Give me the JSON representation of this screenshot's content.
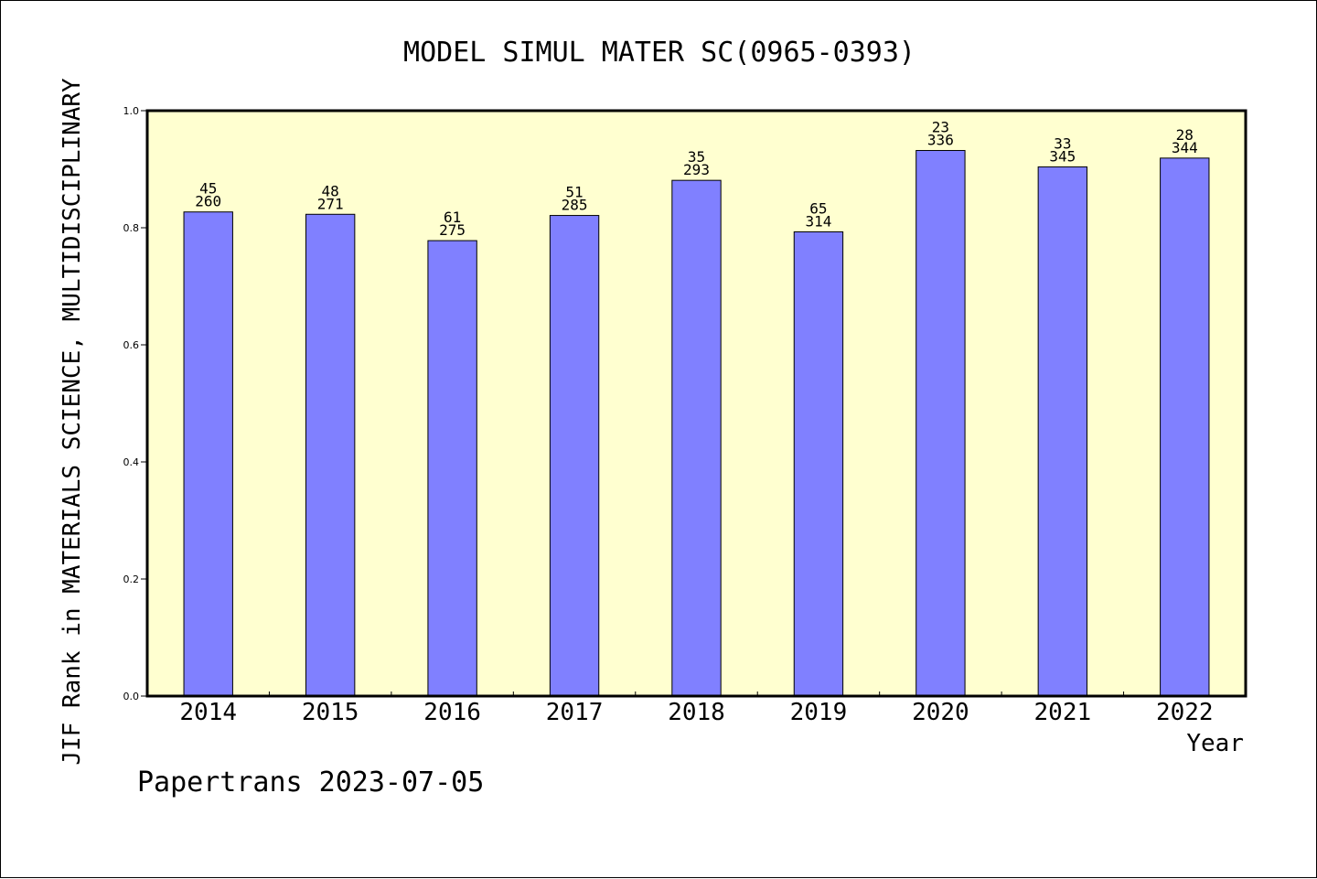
{
  "chart_data": {
    "type": "bar",
    "title": "MODEL SIMUL MATER SC(0965-0393)",
    "xlabel": "Year",
    "ylabel": "JIF Rank in MATERIALS SCIENCE, MULTIDISCIPLINARY",
    "ylim": [
      0,
      1.0
    ],
    "yticks": [
      "0.0",
      "0.2",
      "0.4",
      "0.6",
      "0.8",
      "1.0"
    ],
    "categories": [
      "2014",
      "2015",
      "2016",
      "2017",
      "2018",
      "2019",
      "2020",
      "2021",
      "2022"
    ],
    "values": [
      0.827,
      0.823,
      0.778,
      0.821,
      0.881,
      0.793,
      0.932,
      0.904,
      0.919
    ],
    "rank_labels": [
      "45",
      "48",
      "61",
      "51",
      "35",
      "65",
      "23",
      "33",
      "28"
    ],
    "total_labels": [
      "260",
      "271",
      "275",
      "285",
      "293",
      "314",
      "336",
      "345",
      "344"
    ],
    "grid": false,
    "colors": {
      "plot_background": "#ffffd0",
      "bar_fill": "#8080ff",
      "bar_stroke": "#000000",
      "axis": "#000000"
    }
  },
  "footer": {
    "credit": "Papertrans 2023-07-05"
  }
}
